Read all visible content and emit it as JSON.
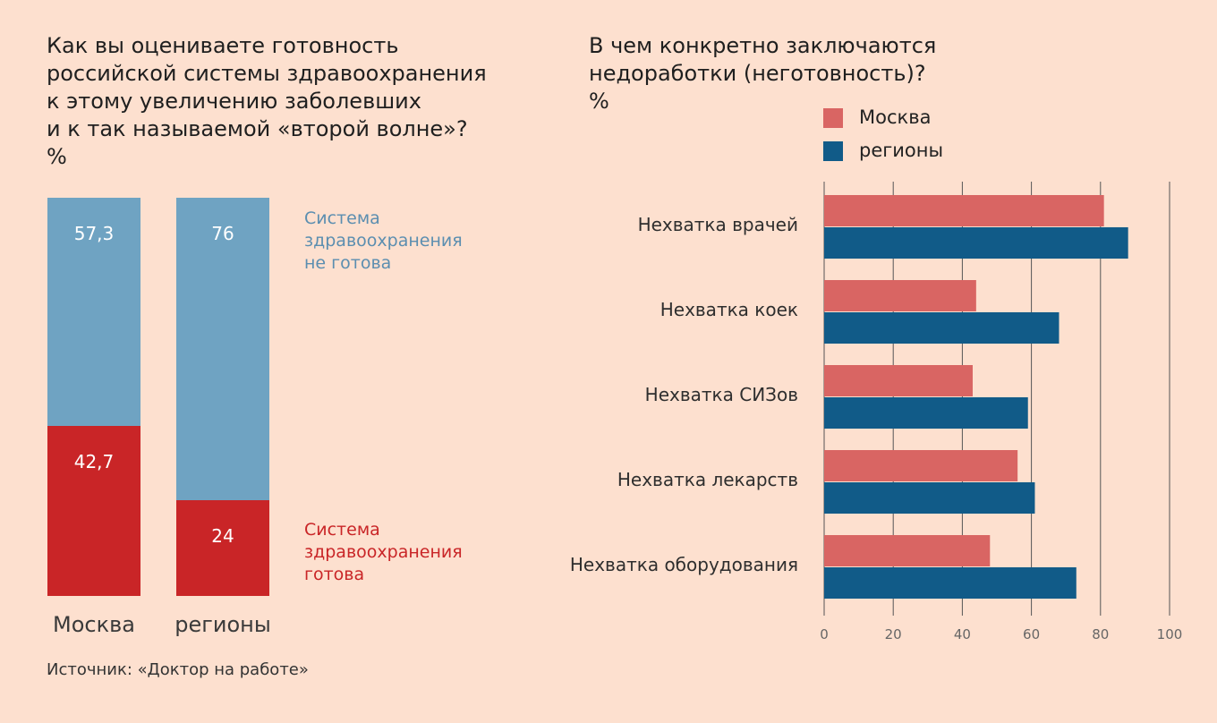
{
  "left": {
    "title": "Как вы оцениваете готовность\nроссийской системы здравоохранения\nк этому увеличению заболевших\nи к так называемой «второй волне»?\n%",
    "legend_not_ready": "Система\nздравоохранения\nне готова",
    "legend_ready": "Система\nздравоохранения\nготова"
  },
  "right": {
    "title": "В чем конкретно заключаются\nнедоработки (неготовность)?\n%"
  },
  "source": "Источник: «Доктор на работе»",
  "colors": {
    "not_ready": "#6fa3c2",
    "ready": "#c92527",
    "moscow": "#d96563",
    "regions": "#115b88",
    "background": "#fde0cf"
  },
  "chart_data": [
    {
      "type": "bar",
      "stacked": true,
      "categories": [
        "Москва",
        "регионы"
      ],
      "series": [
        {
          "name": "Система здравоохранения готова",
          "values": [
            42.7,
            24
          ],
          "labels": [
            "42,7",
            "24"
          ]
        },
        {
          "name": "Система здравоохранения не готова",
          "values": [
            57.3,
            76
          ],
          "labels": [
            "57,3",
            "76"
          ]
        }
      ],
      "ylim": [
        0,
        100
      ]
    },
    {
      "type": "bar",
      "orientation": "horizontal",
      "categories": [
        "Нехватка врачей",
        "Нехватка коек",
        "Нехватка СИЗов",
        "Нехватка лекарств",
        "Нехватка оборудования"
      ],
      "series": [
        {
          "name": "Москва",
          "values": [
            81,
            44,
            43,
            56,
            48
          ]
        },
        {
          "name": "регионы",
          "values": [
            88,
            68,
            59,
            61,
            73
          ]
        }
      ],
      "xlim": [
        0,
        100
      ],
      "xticks": [
        "0",
        "20",
        "40",
        "60",
        "80",
        "100"
      ],
      "legend": "top-left",
      "grid": true
    }
  ]
}
